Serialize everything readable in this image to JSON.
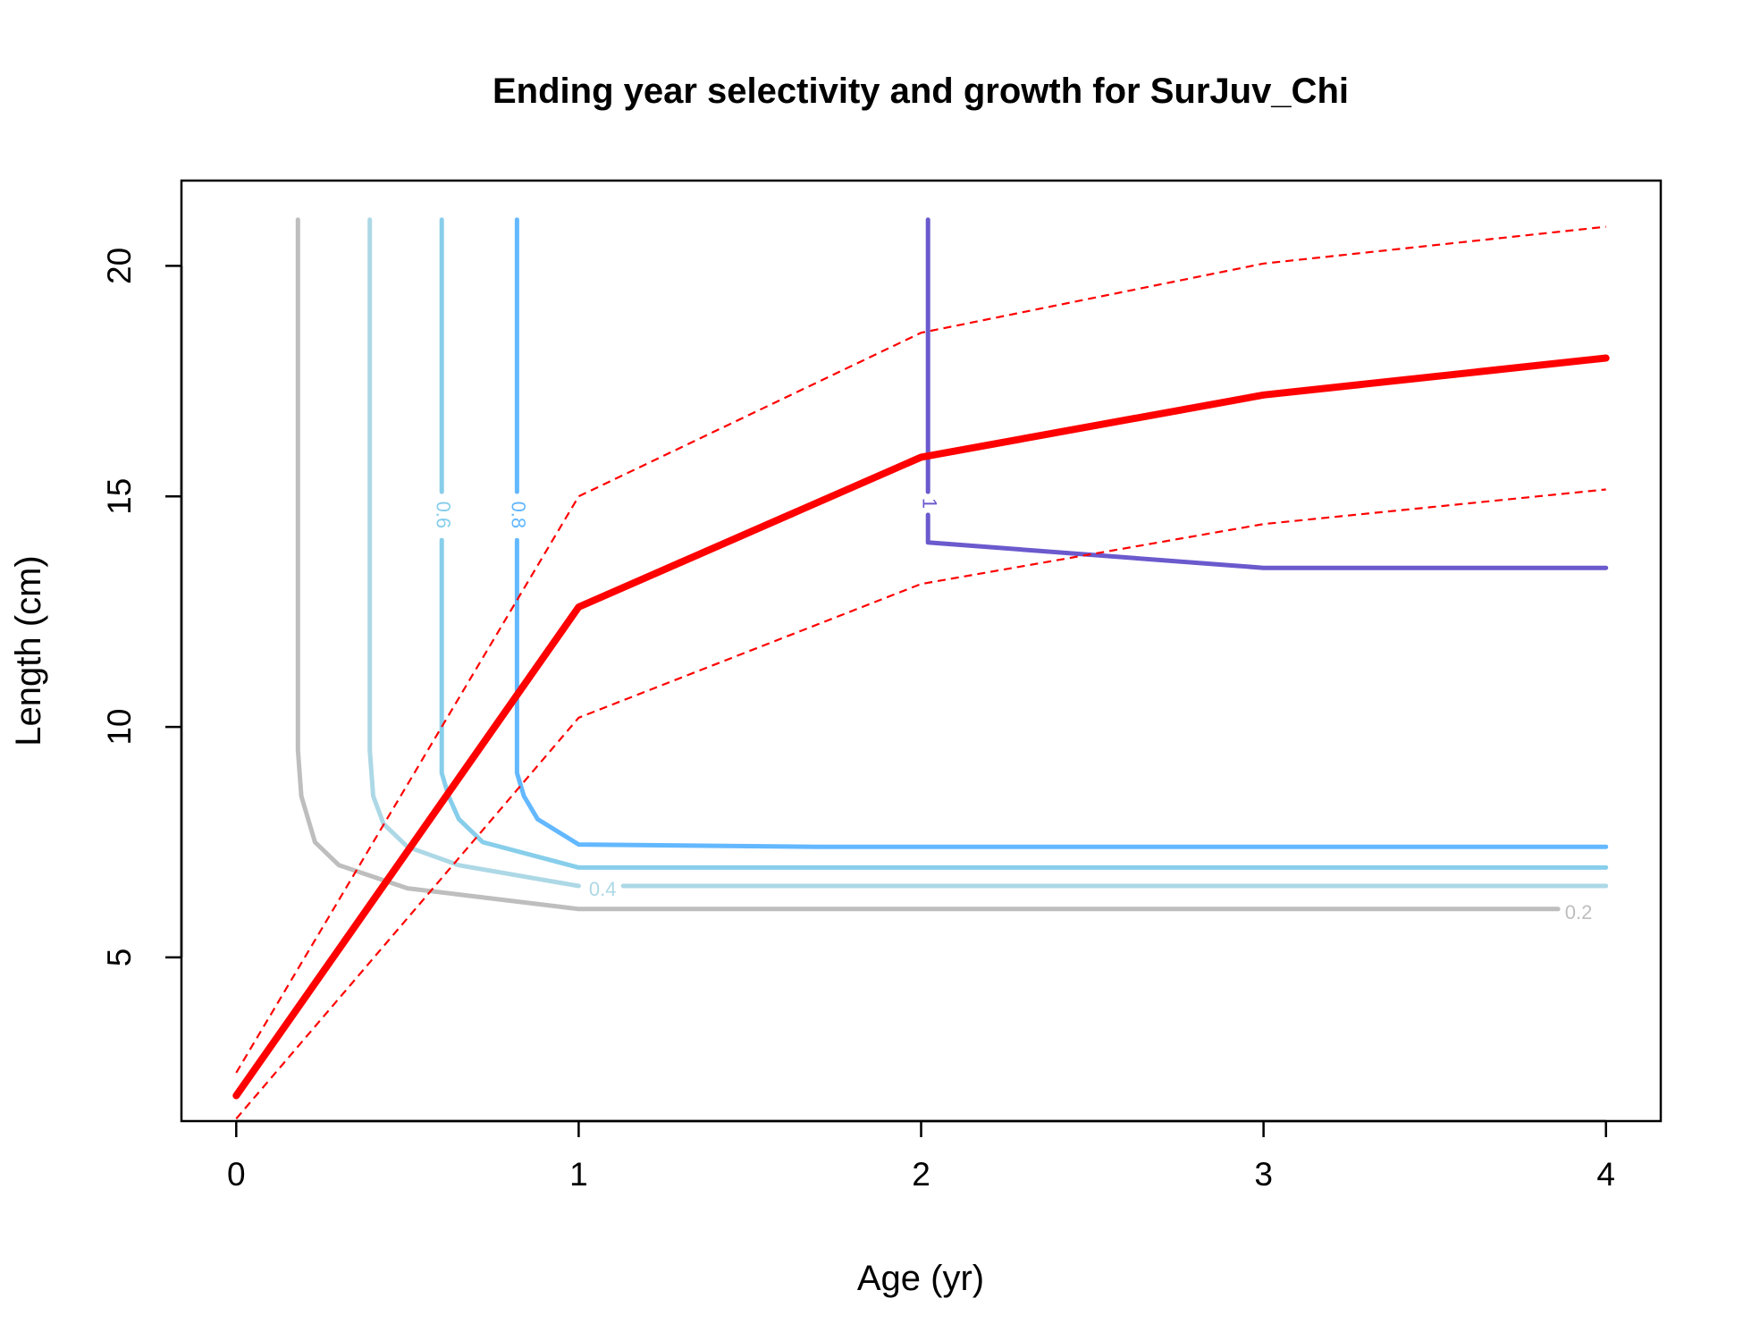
{
  "chart_data": {
    "type": "line",
    "title": "Ending year selectivity and growth for SurJuv_Chi",
    "xlabel": "Age (yr)",
    "ylabel": "Length (cm)",
    "xlim": [
      -0.16,
      4.16
    ],
    "ylim": [
      1.45,
      21.85
    ],
    "x_ticks": [
      0,
      1,
      2,
      3,
      4
    ],
    "x_tick_labels": [
      "0",
      "1",
      "2",
      "3",
      "4"
    ],
    "y_ticks": [
      5,
      10,
      15,
      20
    ],
    "y_tick_labels": [
      "5",
      "10",
      "15",
      "20"
    ],
    "grid": false,
    "legend": "none",
    "growth": {
      "color": "#ff0000",
      "mean": [
        [
          0,
          2.0
        ],
        [
          1,
          12.6
        ],
        [
          2,
          15.85
        ],
        [
          3,
          17.2
        ],
        [
          4,
          18.0
        ]
      ],
      "upper": [
        [
          0,
          2.5
        ],
        [
          1,
          15.0
        ],
        [
          2,
          18.55
        ],
        [
          3,
          20.05
        ],
        [
          4,
          20.85
        ]
      ],
      "lower": [
        [
          0,
          1.5
        ],
        [
          1,
          10.2
        ],
        [
          2,
          13.1
        ],
        [
          3,
          14.4
        ],
        [
          4,
          15.15
        ]
      ]
    },
    "contours": [
      {
        "level": "0.2",
        "color": "#bebebe",
        "points": [
          [
            0.18,
            21.0
          ],
          [
            0.18,
            9.5
          ],
          [
            0.19,
            8.5
          ],
          [
            0.21,
            8.0
          ],
          [
            0.23,
            7.5
          ],
          [
            0.3,
            7.0
          ],
          [
            0.5,
            6.5
          ],
          [
            1,
            6.05
          ],
          [
            3.86,
            6.05
          ]
        ],
        "label_at": [
          3.92,
          5.95
        ]
      },
      {
        "level": "0.4",
        "color": "#add8e6",
        "points": [
          [
            0.39,
            21.0
          ],
          [
            0.39,
            9.5
          ],
          [
            0.4,
            8.5
          ],
          [
            0.43,
            7.9
          ],
          [
            0.5,
            7.4
          ],
          [
            0.65,
            7.0
          ],
          [
            1,
            6.55
          ]
        ],
        "points_after_label": [
          [
            1.13,
            6.55
          ],
          [
            4,
            6.55
          ]
        ],
        "label_at": [
          1.07,
          6.45
        ]
      },
      {
        "level": "0.6",
        "color": "#87ceeb",
        "points": [
          [
            0.6,
            21.0
          ],
          [
            0.6,
            15.1
          ]
        ],
        "points_after_label": [
          [
            0.6,
            14.05
          ],
          [
            0.6,
            9.0
          ],
          [
            0.62,
            8.5
          ],
          [
            0.65,
            8.0
          ],
          [
            0.72,
            7.5
          ],
          [
            1,
            6.95
          ],
          [
            4,
            6.95
          ]
        ],
        "label_at": [
          0.6,
          14.6
        ]
      },
      {
        "level": "0.8",
        "color": "#63b8ff",
        "points": [
          [
            0.82,
            21.0
          ],
          [
            0.82,
            15.1
          ]
        ],
        "points_after_label": [
          [
            0.82,
            14.05
          ],
          [
            0.82,
            9.0
          ],
          [
            0.84,
            8.5
          ],
          [
            0.88,
            8.0
          ],
          [
            1,
            7.45
          ],
          [
            1.7,
            7.4
          ],
          [
            4,
            7.4
          ]
        ],
        "label_at": [
          0.82,
          14.6
        ]
      },
      {
        "level": "1",
        "color": "#6a5acd",
        "points": [
          [
            2.02,
            21.0
          ],
          [
            2.02,
            15.1
          ]
        ],
        "points_after_label": [
          [
            2.02,
            14.6
          ],
          [
            2.02,
            14.0
          ],
          [
            3,
            13.45
          ],
          [
            4,
            13.45
          ]
        ],
        "label_at": [
          2.02,
          14.85
        ]
      }
    ]
  }
}
